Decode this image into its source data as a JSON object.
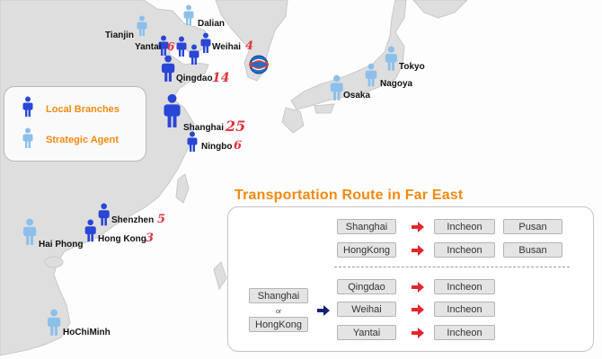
{
  "legend": {
    "local_branches": "Local Branches",
    "strategic_agent": "Strategic Agent"
  },
  "colors": {
    "local_branch": "#2a46d6",
    "strategic_agent": "#8cc0ea",
    "count": "#e0343c",
    "accent": "#f08a10"
  },
  "cities": [
    {
      "name": "Dalian",
      "type": "agent"
    },
    {
      "name": "Tianjin",
      "type": "agent"
    },
    {
      "name": "Yantai",
      "type": "branch",
      "count": "6"
    },
    {
      "name": "Weihai",
      "type": "branch",
      "count": "4"
    },
    {
      "name": "Qingdao",
      "type": "branch",
      "count": "14"
    },
    {
      "name": "Shanghai",
      "type": "branch",
      "count": "25"
    },
    {
      "name": "Ningbo",
      "type": "branch",
      "count": "6"
    },
    {
      "name": "Shenzhen",
      "type": "branch",
      "count": "5"
    },
    {
      "name": "Hong Kong",
      "type": "branch",
      "count": "3"
    },
    {
      "name": "Hai Phong",
      "type": "agent"
    },
    {
      "name": "HoChiMinh",
      "type": "agent"
    },
    {
      "name": "Tokyo",
      "type": "agent"
    },
    {
      "name": "Nagoya",
      "type": "agent"
    },
    {
      "name": "Osaka",
      "type": "agent"
    }
  ],
  "routes": {
    "title": "Transportation Route in Far East",
    "top": [
      {
        "origin": "Shanghai",
        "port": "Incheon",
        "alt": "Pusan"
      },
      {
        "origin": "HongKong",
        "port": "Incheon",
        "alt": "Busan"
      }
    ],
    "bottom": {
      "origin_a": "Shanghai",
      "or": "or",
      "origin_b": "HongKong",
      "rows": [
        {
          "origin": "Qingdao",
          "port": "Incheon"
        },
        {
          "origin": "Weihai",
          "port": "Incheon"
        },
        {
          "origin": "Yantai",
          "port": "Incheon"
        }
      ]
    }
  },
  "icons": {
    "person": "person-icon",
    "arrow": "arrow-right-icon",
    "logo": "globe-logo-icon"
  }
}
